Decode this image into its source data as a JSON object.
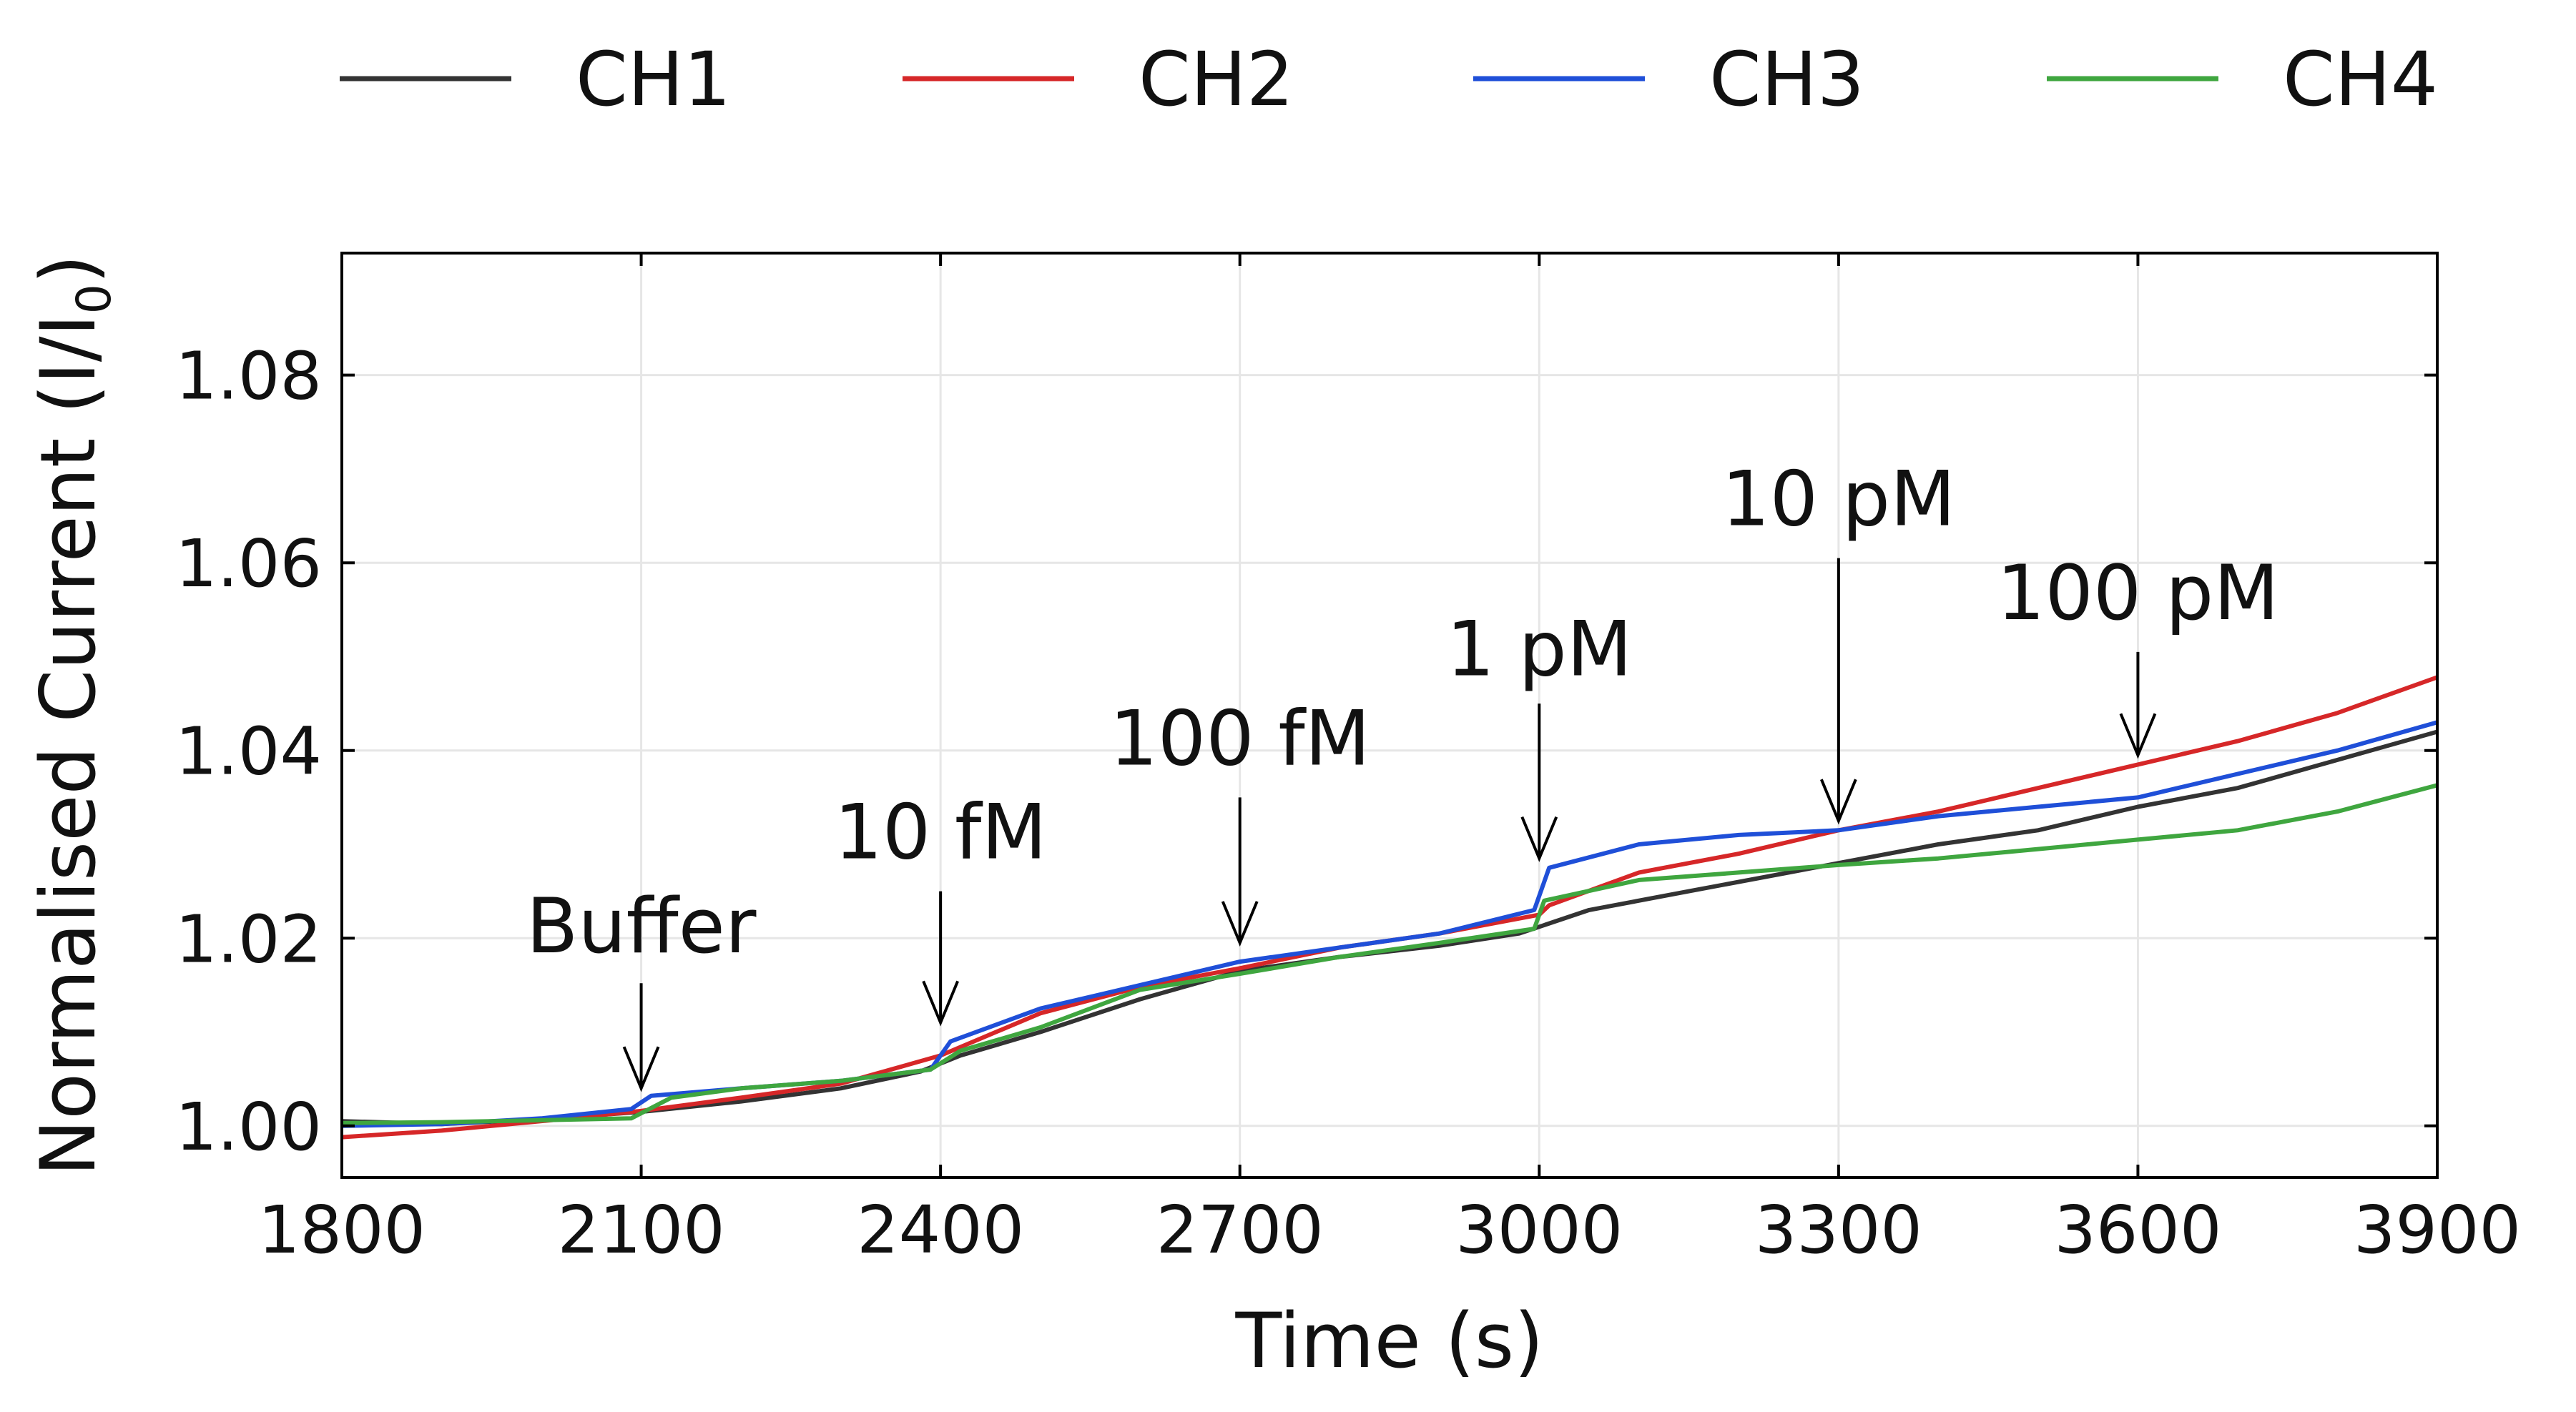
{
  "chart_data": {
    "type": "line",
    "xlabel": "Time (s)",
    "ylabel": {
      "main": "Normalised Current (I/I",
      "subscript": "0",
      "tail": ")"
    },
    "xlim": [
      1800,
      3900
    ],
    "ylim": [
      0.9945,
      1.093
    ],
    "xticks": [
      1800,
      2100,
      2400,
      2700,
      3000,
      3300,
      3600,
      3900
    ],
    "yticks": [
      1.0,
      1.02,
      1.04,
      1.06,
      1.08
    ],
    "grid": true,
    "legend_position": "top",
    "series": [
      {
        "name": "CH1",
        "color": "#333333",
        "points": [
          [
            1800,
            1.0005
          ],
          [
            1900,
            1.0002
          ],
          [
            2000,
            1.0007
          ],
          [
            2100,
            1.0015
          ],
          [
            2200,
            1.0026
          ],
          [
            2300,
            1.004
          ],
          [
            2380,
            1.0058
          ],
          [
            2420,
            1.0075
          ],
          [
            2500,
            1.01
          ],
          [
            2600,
            1.0135
          ],
          [
            2700,
            1.0165
          ],
          [
            2800,
            1.018
          ],
          [
            2900,
            1.0192
          ],
          [
            2980,
            1.0205
          ],
          [
            3050,
            1.023
          ],
          [
            3150,
            1.025
          ],
          [
            3250,
            1.027
          ],
          [
            3300,
            1.028
          ],
          [
            3400,
            1.03
          ],
          [
            3500,
            1.0315
          ],
          [
            3600,
            1.034
          ],
          [
            3700,
            1.036
          ],
          [
            3800,
            1.039
          ],
          [
            3900,
            1.042
          ]
        ]
      },
      {
        "name": "CH2",
        "color": "#d62728",
        "points": [
          [
            1800,
            0.9988
          ],
          [
            1900,
            0.9995
          ],
          [
            2000,
            1.0005
          ],
          [
            2100,
            1.0016
          ],
          [
            2200,
            1.003
          ],
          [
            2300,
            1.0045
          ],
          [
            2400,
            1.0075
          ],
          [
            2500,
            1.012
          ],
          [
            2600,
            1.0148
          ],
          [
            2700,
            1.0168
          ],
          [
            2800,
            1.019
          ],
          [
            2900,
            1.0205
          ],
          [
            3000,
            1.0225
          ],
          [
            3010,
            1.0235
          ],
          [
            3100,
            1.027
          ],
          [
            3200,
            1.029
          ],
          [
            3300,
            1.0315
          ],
          [
            3400,
            1.0335
          ],
          [
            3500,
            1.036
          ],
          [
            3600,
            1.0385
          ],
          [
            3700,
            1.041
          ],
          [
            3800,
            1.044
          ],
          [
            3900,
            1.0478
          ]
        ]
      },
      {
        "name": "CH3",
        "color": "#1f4fd8",
        "points": [
          [
            1800,
            1.0
          ],
          [
            1900,
            1.0002
          ],
          [
            2000,
            1.0008
          ],
          [
            2090,
            1.0018
          ],
          [
            2110,
            1.0032
          ],
          [
            2200,
            1.004
          ],
          [
            2300,
            1.0048
          ],
          [
            2390,
            1.006
          ],
          [
            2410,
            1.009
          ],
          [
            2500,
            1.0125
          ],
          [
            2600,
            1.015
          ],
          [
            2700,
            1.0175
          ],
          [
            2800,
            1.019
          ],
          [
            2900,
            1.0205
          ],
          [
            2995,
            1.023
          ],
          [
            3010,
            1.0275
          ],
          [
            3100,
            1.03
          ],
          [
            3200,
            1.031
          ],
          [
            3300,
            1.0315
          ],
          [
            3400,
            1.033
          ],
          [
            3500,
            1.034
          ],
          [
            3600,
            1.035
          ],
          [
            3700,
            1.0375
          ],
          [
            3800,
            1.04
          ],
          [
            3900,
            1.043
          ]
        ]
      },
      {
        "name": "CH4",
        "color": "#3fa63f",
        "points": [
          [
            1800,
            1.0003
          ],
          [
            1900,
            1.0004
          ],
          [
            2000,
            1.0006
          ],
          [
            2090,
            1.0008
          ],
          [
            2130,
            1.003
          ],
          [
            2200,
            1.004
          ],
          [
            2300,
            1.0048
          ],
          [
            2390,
            1.006
          ],
          [
            2420,
            1.008
          ],
          [
            2500,
            1.0105
          ],
          [
            2600,
            1.0145
          ],
          [
            2700,
            1.0162
          ],
          [
            2800,
            1.018
          ],
          [
            2900,
            1.0195
          ],
          [
            2995,
            1.021
          ],
          [
            3005,
            1.024
          ],
          [
            3100,
            1.0262
          ],
          [
            3200,
            1.027
          ],
          [
            3300,
            1.0278
          ],
          [
            3400,
            1.0285
          ],
          [
            3500,
            1.0295
          ],
          [
            3600,
            1.0305
          ],
          [
            3700,
            1.0315
          ],
          [
            3800,
            1.0335
          ],
          [
            3900,
            1.0363
          ]
        ]
      }
    ],
    "annotations": [
      {
        "label": "Buffer",
        "x": 2100,
        "y_text": 1.0185,
        "y_tail": 1.0152,
        "y_head": 1.004
      },
      {
        "label": "10 fM",
        "x": 2400,
        "y_text": 1.0285,
        "y_tail": 1.025,
        "y_head": 1.011
      },
      {
        "label": "100 fM",
        "x": 2700,
        "y_text": 1.0385,
        "y_tail": 1.035,
        "y_head": 1.0195
      },
      {
        "label": "1 pM",
        "x": 3000,
        "y_text": 1.048,
        "y_tail": 1.045,
        "y_head": 1.0285
      },
      {
        "label": "10 pM",
        "x": 3300,
        "y_text": 1.064,
        "y_tail": 1.0605,
        "y_head": 1.0325
      },
      {
        "label": "100 pM",
        "x": 3600,
        "y_text": 1.054,
        "y_tail": 1.0505,
        "y_head": 1.0395
      }
    ]
  }
}
